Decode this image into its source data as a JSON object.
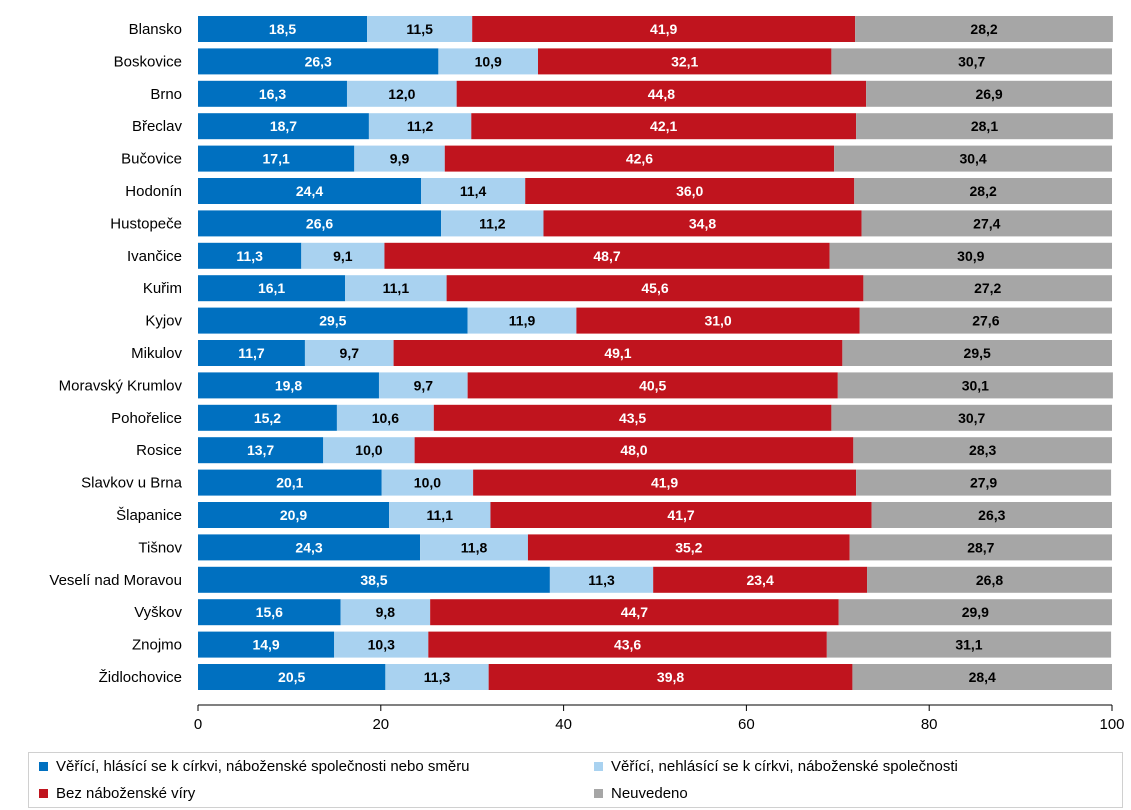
{
  "chart_data": {
    "type": "bar",
    "stacked": true,
    "orientation": "horizontal",
    "categories": [
      "Blansko",
      "Boskovice",
      "Brno",
      "Břeclav",
      "Bučovice",
      "Hodonín",
      "Hustopeče",
      "Ivančice",
      "Kuřim",
      "Kyjov",
      "Mikulov",
      "Moravský Krumlov",
      "Pohořelice",
      "Rosice",
      "Slavkov u Brna",
      "Šlapanice",
      "Tišnov",
      "Veselí nad Moravou",
      "Vyškov",
      "Znojmo",
      "Židlochovice"
    ],
    "series": [
      {
        "name": "Věřící, hlásící se k církvi, náboženské společnosti nebo směru",
        "color": "#0070c0",
        "label_color": "#ffffff",
        "values": [
          18.5,
          26.3,
          16.3,
          18.7,
          17.1,
          24.4,
          26.6,
          11.3,
          16.1,
          29.5,
          11.7,
          19.8,
          15.2,
          13.7,
          20.1,
          20.9,
          24.3,
          38.5,
          15.6,
          14.9,
          20.5
        ],
        "labels": [
          "18,5",
          "26,3",
          "16,3",
          "18,7",
          "17,1",
          "24,4",
          "26,6",
          "11,3",
          "16,1",
          "29,5",
          "11,7",
          "19,8",
          "15,2",
          "13,7",
          "20,1",
          "20,9",
          "24,3",
          "38,5",
          "15,6",
          "14,9",
          "20,5"
        ]
      },
      {
        "name": "Věřící, nehlásící se k církvi, náboženské společnosti",
        "color": "#a9d2f0",
        "label_color": "#000000",
        "values": [
          11.5,
          10.9,
          12.0,
          11.2,
          9.9,
          11.4,
          11.2,
          9.1,
          11.1,
          11.9,
          9.7,
          9.7,
          10.6,
          10.0,
          10.0,
          11.1,
          11.8,
          11.3,
          9.8,
          10.3,
          11.3
        ],
        "labels": [
          "11,5",
          "10,9",
          "12,0",
          "11,2",
          "9,9",
          "11,4",
          "11,2",
          "9,1",
          "11,1",
          "11,9",
          "9,7",
          "9,7",
          "10,6",
          "10,0",
          "10,0",
          "11,1",
          "11,8",
          "11,3",
          "9,8",
          "10,3",
          "11,3"
        ]
      },
      {
        "name": "Bez náboženské víry",
        "color": "#c0141e",
        "label_color": "#ffffff",
        "values": [
          41.9,
          32.1,
          44.8,
          42.1,
          42.6,
          36.0,
          34.8,
          48.7,
          45.6,
          31.0,
          49.1,
          40.5,
          43.5,
          48.0,
          41.9,
          41.7,
          35.2,
          23.4,
          44.7,
          43.6,
          39.8
        ],
        "labels": [
          "41,9",
          "32,1",
          "44,8",
          "42,1",
          "42,6",
          "36,0",
          "34,8",
          "48,7",
          "45,6",
          "31,0",
          "49,1",
          "40,5",
          "43,5",
          "48,0",
          "41,9",
          "41,7",
          "35,2",
          "23,4",
          "44,7",
          "43,6",
          "39,8"
        ]
      },
      {
        "name": "Neuvedeno",
        "color": "#a6a6a6",
        "label_color": "#000000",
        "values": [
          28.2,
          30.7,
          26.9,
          28.1,
          30.4,
          28.2,
          27.4,
          30.9,
          27.2,
          27.6,
          29.5,
          30.1,
          30.7,
          28.3,
          27.9,
          26.3,
          28.7,
          26.8,
          29.9,
          31.1,
          28.4
        ],
        "labels": [
          "28,2",
          "30,7",
          "26,9",
          "28,1",
          "30,4",
          "28,2",
          "27,4",
          "30,9",
          "27,2",
          "27,6",
          "29,5",
          "30,1",
          "30,7",
          "28,3",
          "27,9",
          "26,3",
          "28,7",
          "26,8",
          "29,9",
          "31,1",
          "28,4"
        ]
      }
    ],
    "xlim": [
      0,
      100
    ],
    "xticks": [
      "0",
      "20",
      "40",
      "60",
      "80",
      "100"
    ],
    "grid": false,
    "legend_position": "bottom"
  }
}
